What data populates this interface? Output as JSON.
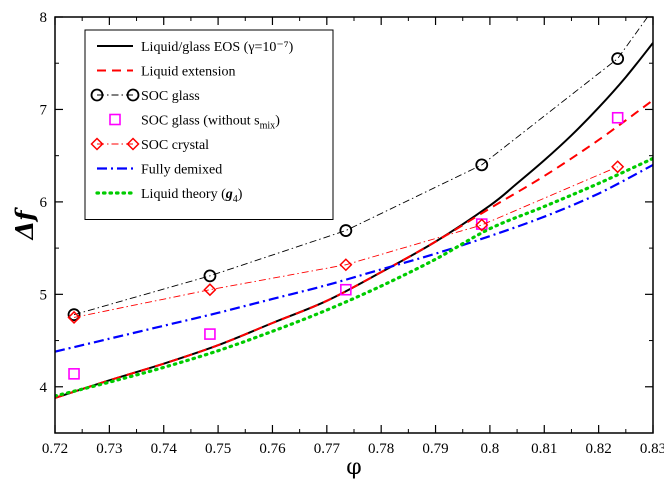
{
  "chart_data": {
    "type": "line",
    "xlabel": "φ",
    "ylabel": "Δf",
    "xlim": [
      0.72,
      0.83
    ],
    "ylim": [
      3.5,
      8.0
    ],
    "x_ticks": [
      0.72,
      0.73,
      0.74,
      0.75,
      0.76,
      0.77,
      0.78,
      0.79,
      0.8,
      0.81,
      0.82,
      0.83
    ],
    "x_tick_labels": [
      "0.72",
      "0.73",
      "0.74",
      "0.75",
      "0.76",
      "0.77",
      "0.78",
      "0.79",
      "0.8",
      "0.81",
      "0.82",
      "0.83"
    ],
    "y_ticks": [
      4,
      5,
      6,
      7,
      8
    ],
    "y_tick_labels": [
      "4",
      "5",
      "6",
      "7",
      "8"
    ],
    "grid": false,
    "legend_position": "top-left",
    "series": [
      {
        "name": "Liquid/glass EOS (γ=10⁻⁷)",
        "color": "#000000",
        "style": "solid",
        "marker": "none",
        "x": [
          0.72,
          0.73,
          0.74,
          0.75,
          0.76,
          0.77,
          0.78,
          0.79,
          0.8,
          0.805,
          0.81,
          0.815,
          0.82,
          0.825,
          0.83
        ],
        "y": [
          3.88,
          4.07,
          4.25,
          4.45,
          4.69,
          4.93,
          5.24,
          5.57,
          5.96,
          6.2,
          6.45,
          6.72,
          7.02,
          7.35,
          7.72
        ]
      },
      {
        "name": "Liquid extension",
        "color": "#ff0000",
        "style": "dashed",
        "marker": "none",
        "x": [
          0.72,
          0.73,
          0.74,
          0.75,
          0.76,
          0.77,
          0.78,
          0.79,
          0.8,
          0.81,
          0.82,
          0.83
        ],
        "y": [
          3.88,
          4.07,
          4.25,
          4.45,
          4.69,
          4.93,
          5.24,
          5.57,
          5.93,
          6.28,
          6.67,
          7.1
        ]
      },
      {
        "name": "SOC glass",
        "color": "#000000",
        "style": "dashdot-thin",
        "marker": "circle",
        "x": [
          0.7235,
          0.7485,
          0.7735,
          0.7985,
          0.8235,
          0.829
        ],
        "y": [
          4.78,
          5.2,
          5.69,
          6.4,
          7.55,
          8.0
        ],
        "marker_count": 5
      },
      {
        "name": "SOC glass (without s",
        "name_sub": "mix",
        "name_suffix": ")",
        "color": "#ff00ff",
        "style": "none",
        "marker": "square",
        "x": [
          0.7235,
          0.7485,
          0.7735,
          0.7985,
          0.8235
        ],
        "y": [
          4.14,
          4.57,
          5.05,
          5.76,
          6.91
        ]
      },
      {
        "name": "SOC crystal",
        "color": "#ff0000",
        "style": "dashdot-thin",
        "marker": "diamond",
        "x": [
          0.7235,
          0.7485,
          0.7735,
          0.7985,
          0.8235
        ],
        "y": [
          4.75,
          5.05,
          5.32,
          5.75,
          6.38
        ]
      },
      {
        "name": "Fully demixed",
        "color": "#0000ff",
        "style": "dashdot",
        "marker": "none",
        "x": [
          0.72,
          0.73,
          0.74,
          0.75,
          0.76,
          0.77,
          0.78,
          0.79,
          0.8,
          0.81,
          0.82,
          0.83
        ],
        "y": [
          4.38,
          4.52,
          4.66,
          4.8,
          4.95,
          5.1,
          5.27,
          5.44,
          5.63,
          5.84,
          6.09,
          6.4
        ]
      },
      {
        "name": "Liquid theory (",
        "name_italic": "g",
        "name_sub": "4",
        "name_suffix": ")",
        "color": "#00cc00",
        "style": "dotted",
        "marker": "none",
        "x": [
          0.72,
          0.73,
          0.74,
          0.75,
          0.76,
          0.77,
          0.78,
          0.79,
          0.8,
          0.81,
          0.82,
          0.83
        ],
        "y": [
          3.9,
          4.05,
          4.21,
          4.39,
          4.6,
          4.83,
          5.09,
          5.38,
          5.71,
          5.95,
          6.2,
          6.47
        ]
      }
    ]
  }
}
